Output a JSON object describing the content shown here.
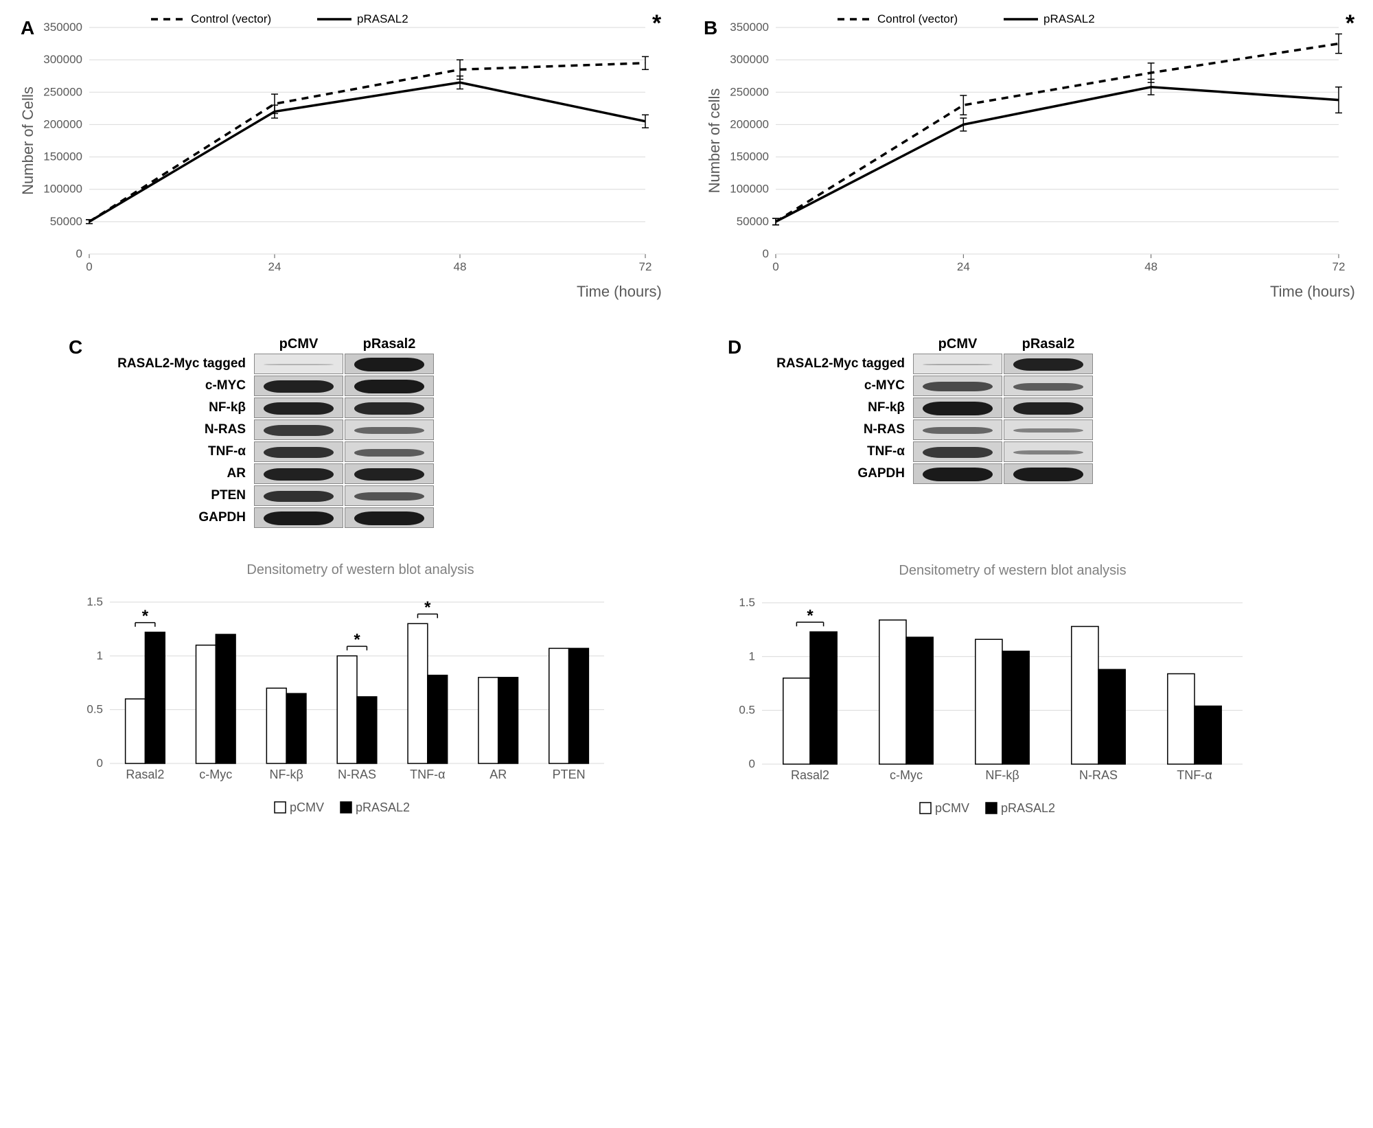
{
  "colors": {
    "bg": "#ffffff",
    "axis": "#404040",
    "grid": "#d9d9d9",
    "text": "#595959",
    "black": "#000000",
    "gray_title": "#808080"
  },
  "panelA": {
    "label": "A",
    "type": "line",
    "x": [
      0,
      24,
      48,
      72
    ],
    "xlabel": "Time (hours)",
    "ylabel": "Number of Cells",
    "ylim": [
      0,
      350000
    ],
    "ytick_step": 50000,
    "series": [
      {
        "name": "Control (vector)",
        "style": "dashed",
        "color": "#000000",
        "values": [
          50000,
          232000,
          285000,
          295000
        ],
        "err": [
          3000,
          15000,
          15000,
          10000
        ]
      },
      {
        "name": "pRASAL2",
        "style": "solid",
        "color": "#000000",
        "values": [
          50000,
          220000,
          265000,
          205000
        ],
        "err": [
          3000,
          10000,
          10000,
          10000
        ]
      }
    ],
    "significance": {
      "x": 72,
      "symbol": "*"
    },
    "label_fontsize": 22,
    "tick_fontsize": 17,
    "legend_fontsize": 17
  },
  "panelB": {
    "label": "B",
    "type": "line",
    "x": [
      0,
      24,
      48,
      72
    ],
    "xlabel": "Time (hours)",
    "ylabel": "Number of cells",
    "ylim": [
      0,
      350000
    ],
    "ytick_step": 50000,
    "series": [
      {
        "name": "Control (vector)",
        "style": "dashed",
        "color": "#000000",
        "values": [
          50000,
          230000,
          280000,
          325000
        ],
        "err": [
          5000,
          15000,
          15000,
          15000
        ]
      },
      {
        "name": "pRASAL2",
        "style": "solid",
        "color": "#000000",
        "values": [
          50000,
          200000,
          258000,
          238000
        ],
        "err": [
          5000,
          10000,
          12000,
          20000
        ]
      }
    ],
    "significance": {
      "x": 72,
      "symbol": "*"
    },
    "label_fontsize": 22,
    "tick_fontsize": 17,
    "legend_fontsize": 17
  },
  "panelC": {
    "label": "C",
    "blot": {
      "columns": [
        "pCMV",
        "pRasal2"
      ],
      "rows": [
        {
          "label": "RASAL2-Myc tagged",
          "intensities": [
            0.05,
            0.95
          ]
        },
        {
          "label": "c-MYC",
          "intensities": [
            0.85,
            0.9
          ]
        },
        {
          "label": "NF-kβ",
          "intensities": [
            0.85,
            0.8
          ]
        },
        {
          "label": "N-RAS",
          "intensities": [
            0.7,
            0.45
          ]
        },
        {
          "label": "TNF-α",
          "intensities": [
            0.75,
            0.5
          ]
        },
        {
          "label": "AR",
          "intensities": [
            0.85,
            0.85
          ]
        },
        {
          "label": "PTEN",
          "intensities": [
            0.75,
            0.55
          ]
        },
        {
          "label": "GAPDH",
          "intensities": [
            0.9,
            0.9
          ]
        }
      ]
    },
    "bar": {
      "title": "Densitometry of western blot analysis",
      "categories": [
        "Rasal2",
        "c-Myc",
        "NF-kβ",
        "N-RAS",
        "TNF-α",
        "AR",
        "PTEN"
      ],
      "series": [
        {
          "name": "pCMV",
          "fill": "#ffffff",
          "stroke": "#000000",
          "values": [
            0.6,
            1.1,
            0.7,
            1.0,
            1.3,
            0.8,
            1.07
          ]
        },
        {
          "name": "pRASAL2",
          "fill": "#000000",
          "stroke": "#000000",
          "values": [
            1.22,
            1.2,
            0.65,
            0.62,
            0.82,
            0.8,
            1.07
          ]
        }
      ],
      "ylim": [
        0,
        1.5
      ],
      "ytick_step": 0.5,
      "significance": [
        0,
        3,
        4
      ]
    }
  },
  "panelD": {
    "label": "D",
    "blot": {
      "columns": [
        "pCMV",
        "pRasal2"
      ],
      "rows": [
        {
          "label": "RASAL2-Myc tagged",
          "intensities": [
            0.1,
            0.85
          ]
        },
        {
          "label": "c-MYC",
          "intensities": [
            0.6,
            0.5
          ]
        },
        {
          "label": "NF-kβ",
          "intensities": [
            0.9,
            0.85
          ]
        },
        {
          "label": "N-RAS",
          "intensities": [
            0.45,
            0.3
          ]
        },
        {
          "label": "TNF-α",
          "intensities": [
            0.7,
            0.3
          ]
        },
        {
          "label": "GAPDH",
          "intensities": [
            0.9,
            0.9
          ]
        }
      ]
    },
    "bar": {
      "title": "Densitometry of western blot analysis",
      "categories": [
        "Rasal2",
        "c-Myc",
        "NF-kβ",
        "N-RAS",
        "TNF-α"
      ],
      "series": [
        {
          "name": "pCMV",
          "fill": "#ffffff",
          "stroke": "#000000",
          "values": [
            0.8,
            1.34,
            1.16,
            1.28,
            0.84
          ]
        },
        {
          "name": "pRASAL2",
          "fill": "#000000",
          "stroke": "#000000",
          "values": [
            1.23,
            1.18,
            1.05,
            0.88,
            0.54
          ]
        }
      ],
      "ylim": [
        0,
        1.5
      ],
      "ytick_step": 0.5,
      "significance": [
        0
      ]
    }
  }
}
